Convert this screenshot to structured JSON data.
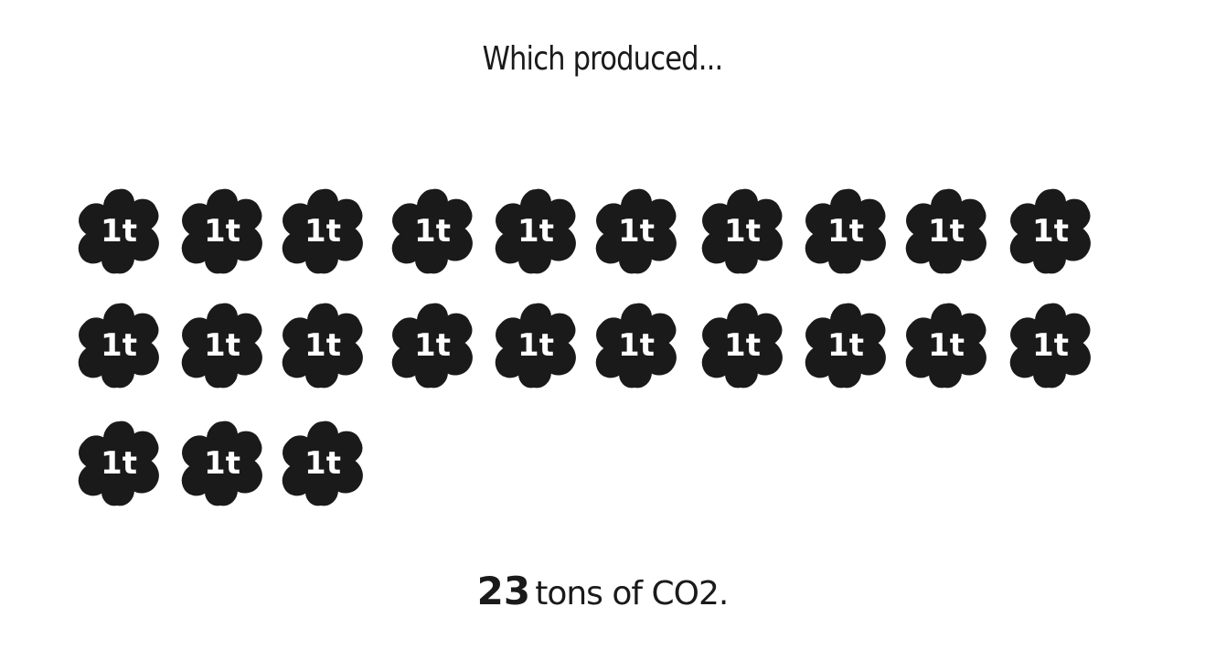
{
  "heading": "Which produced...",
  "tonnage": {
    "count": 23,
    "count_label": "23",
    "unit_text": "tons of CO2.",
    "icon_label": "1t",
    "icon_name": "co2-ton-blob-icon",
    "icons_per_row": 10
  },
  "colors": {
    "blob": "#1a1a1a",
    "blob_text": "#ffffff",
    "background": "#ffffff"
  }
}
